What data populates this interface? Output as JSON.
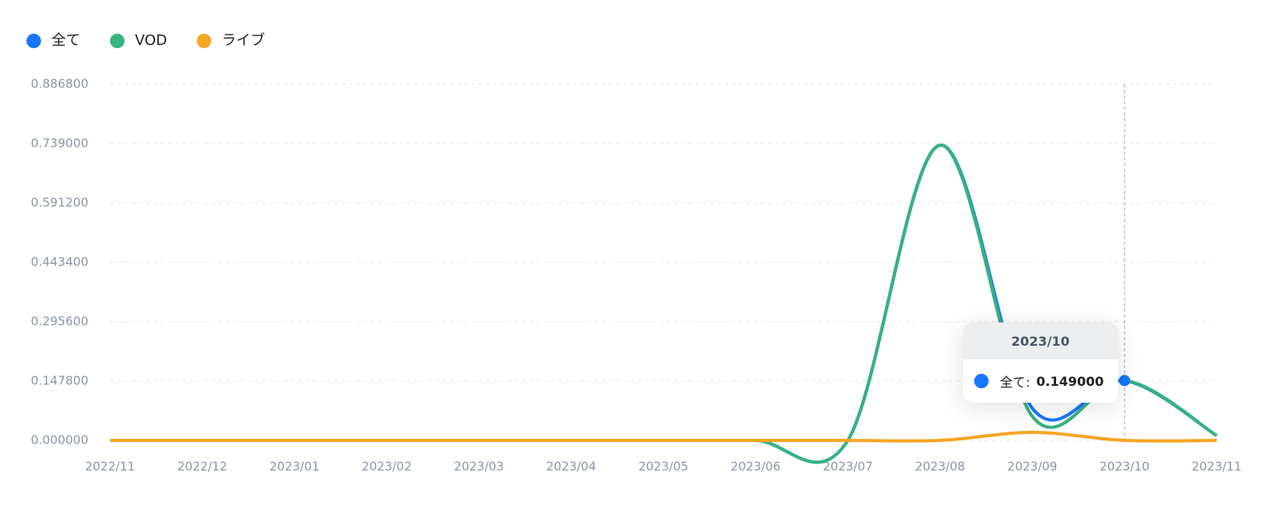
{
  "chart_data": {
    "type": "line",
    "categories": [
      "2022/11",
      "2022/12",
      "2023/01",
      "2023/02",
      "2023/03",
      "2023/04",
      "2023/05",
      "2023/06",
      "2023/07",
      "2023/08",
      "2023/09",
      "2023/10",
      "2023/11"
    ],
    "series": [
      {
        "name": "全て",
        "color": "#1677ff",
        "values": [
          0,
          0,
          0,
          0,
          0,
          0,
          0,
          0,
          0,
          0.735,
          0.08,
          0.149,
          0.012
        ]
      },
      {
        "name": "VOD",
        "color": "#36b37e",
        "values": [
          0,
          0,
          0,
          0,
          0,
          0,
          0,
          0,
          0,
          0.735,
          0.06,
          0.149,
          0.012
        ]
      },
      {
        "name": "ライブ",
        "color": "#f5a623",
        "values": [
          0,
          0,
          0,
          0,
          0,
          0,
          0,
          0,
          0,
          0,
          0.02,
          0,
          0
        ]
      }
    ],
    "ylim": [
      0,
      0.8868
    ],
    "yticks": [
      {
        "value": 0,
        "label": "0.000000"
      },
      {
        "value": 0.1478,
        "label": "0.147800"
      },
      {
        "value": 0.2956,
        "label": "0.295600"
      },
      {
        "value": 0.4434,
        "label": "0.443400"
      },
      {
        "value": 0.5912,
        "label": "0.591200"
      },
      {
        "value": 0.739,
        "label": "0.739000"
      },
      {
        "value": 0.8868,
        "label": "0.886800"
      }
    ],
    "grid": true,
    "legend": "top-left",
    "tooltip": {
      "x": "2023/10",
      "series": "全て:",
      "value_label": "0.149000"
    }
  }
}
